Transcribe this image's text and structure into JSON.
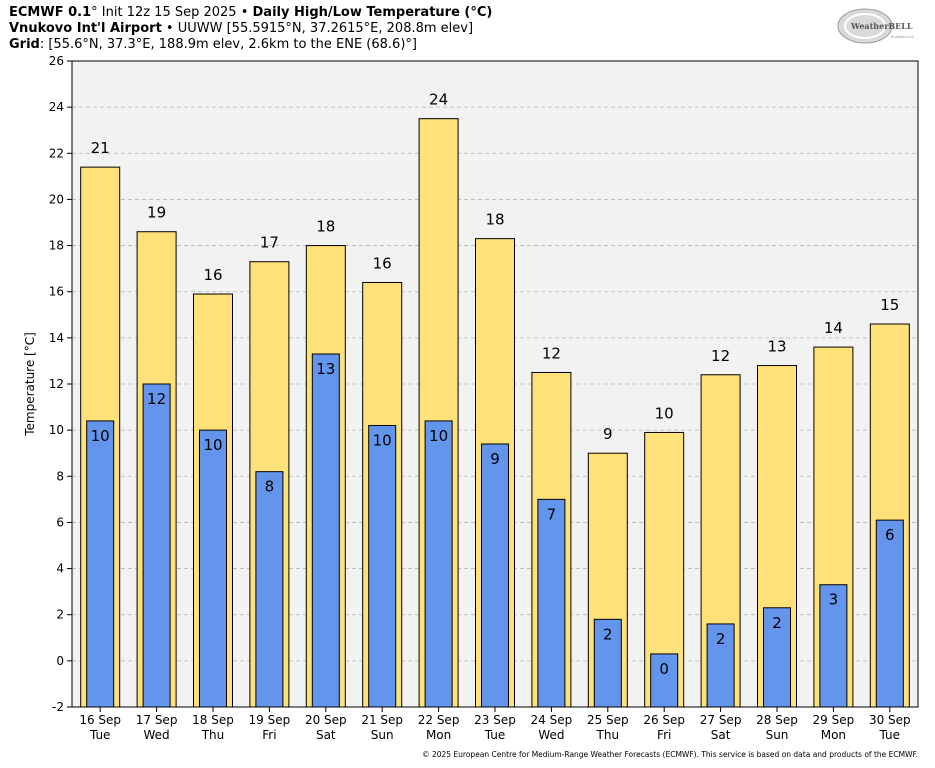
{
  "header": {
    "line1_model": "ECMWF 0.1",
    "line1_deg": "°",
    "line1_init": " Init 12z 15 Sep 2025",
    "line1_sep": " • ",
    "line1_title": "Daily High/Low Temperature (°C)",
    "line2_station": "Vnukovo Int'l Airport",
    "line2_details": " • UUWW [55.5915°N, 37.2615°E, 208.8m elev]",
    "line3_label": "Grid",
    "line3_details": ": [55.6°N, 37.3°E, 188.9m elev, 2.6km to the ENE (68.6)°]"
  },
  "logo": {
    "text": "WeatherBELL",
    "tagline": "Analytics LLC"
  },
  "footer": "© 2025 European Centre for Medium-Range Weather Forecasts (ECMWF). This service is based on data and products of the ECMWF.",
  "chart_data": {
    "type": "bar",
    "ylabel": "Temperature [°C]",
    "ylim": [
      -2,
      26
    ],
    "yticks": [
      -2,
      0,
      2,
      4,
      6,
      8,
      10,
      12,
      14,
      16,
      18,
      20,
      22,
      24,
      26
    ],
    "grid": true,
    "categories": [
      "16 Sep",
      "17 Sep",
      "18 Sep",
      "19 Sep",
      "20 Sep",
      "21 Sep",
      "22 Sep",
      "23 Sep",
      "24 Sep",
      "25 Sep",
      "26 Sep",
      "27 Sep",
      "28 Sep",
      "29 Sep",
      "30 Sep"
    ],
    "weekdays": [
      "Tue",
      "Wed",
      "Thu",
      "Fri",
      "Sat",
      "Sun",
      "Mon",
      "Tue",
      "Wed",
      "Thu",
      "Fri",
      "Sat",
      "Sun",
      "Mon",
      "Tue"
    ],
    "series": [
      {
        "role": "high",
        "color": "#ffe17a",
        "values": [
          21.4,
          18.6,
          15.9,
          17.3,
          18.0,
          16.4,
          23.5,
          18.3,
          12.5,
          9.0,
          9.9,
          12.4,
          12.8,
          13.6,
          14.6
        ],
        "labels": [
          "21",
          "19",
          "16",
          "17",
          "18",
          "16",
          "24",
          "18",
          "12",
          "9",
          "10",
          "12",
          "13",
          "14",
          "15"
        ]
      },
      {
        "role": "low",
        "color": "#6495ed",
        "values": [
          10.4,
          12.0,
          10.0,
          8.2,
          13.3,
          10.2,
          10.4,
          9.4,
          7.0,
          1.8,
          0.3,
          1.6,
          2.3,
          3.3,
          6.1
        ],
        "labels": [
          "10",
          "12",
          "10",
          "8",
          "13",
          "10",
          "10",
          "9",
          "7",
          "2",
          "0",
          "2",
          "2",
          "3",
          "6"
        ]
      }
    ]
  }
}
